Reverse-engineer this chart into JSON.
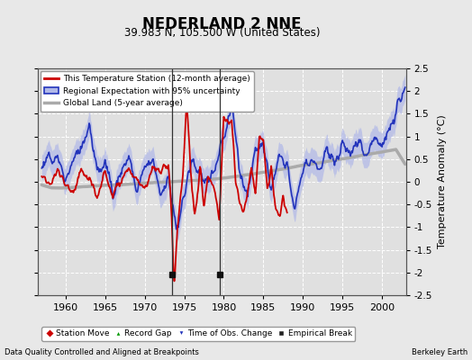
{
  "title": "NEDERLAND 2 NNE",
  "subtitle": "39.983 N, 105.500 W (United States)",
  "ylabel": "Temperature Anomaly (°C)",
  "xlabel_left": "Data Quality Controlled and Aligned at Breakpoints",
  "xlabel_right": "Berkeley Earth",
  "ylim": [
    -2.5,
    2.5
  ],
  "xlim": [
    1956.5,
    2003.0
  ],
  "yticks": [
    -2.5,
    -2,
    -1.5,
    -1,
    -0.5,
    0,
    0.5,
    1,
    1.5,
    2,
    2.5
  ],
  "xticks": [
    1960,
    1965,
    1970,
    1975,
    1980,
    1985,
    1990,
    1995,
    2000
  ],
  "background_color": "#e8e8e8",
  "plot_bg_color": "#e0e0e0",
  "station_color": "#cc0000",
  "regional_color": "#2233bb",
  "regional_fill_color": "#b0b8e8",
  "global_color": "#aaaaaa",
  "global_linewidth": 2.5,
  "empirical_break_years": [
    1973.5,
    1979.5
  ],
  "station_linewidth": 1.3,
  "regional_linewidth": 1.2
}
